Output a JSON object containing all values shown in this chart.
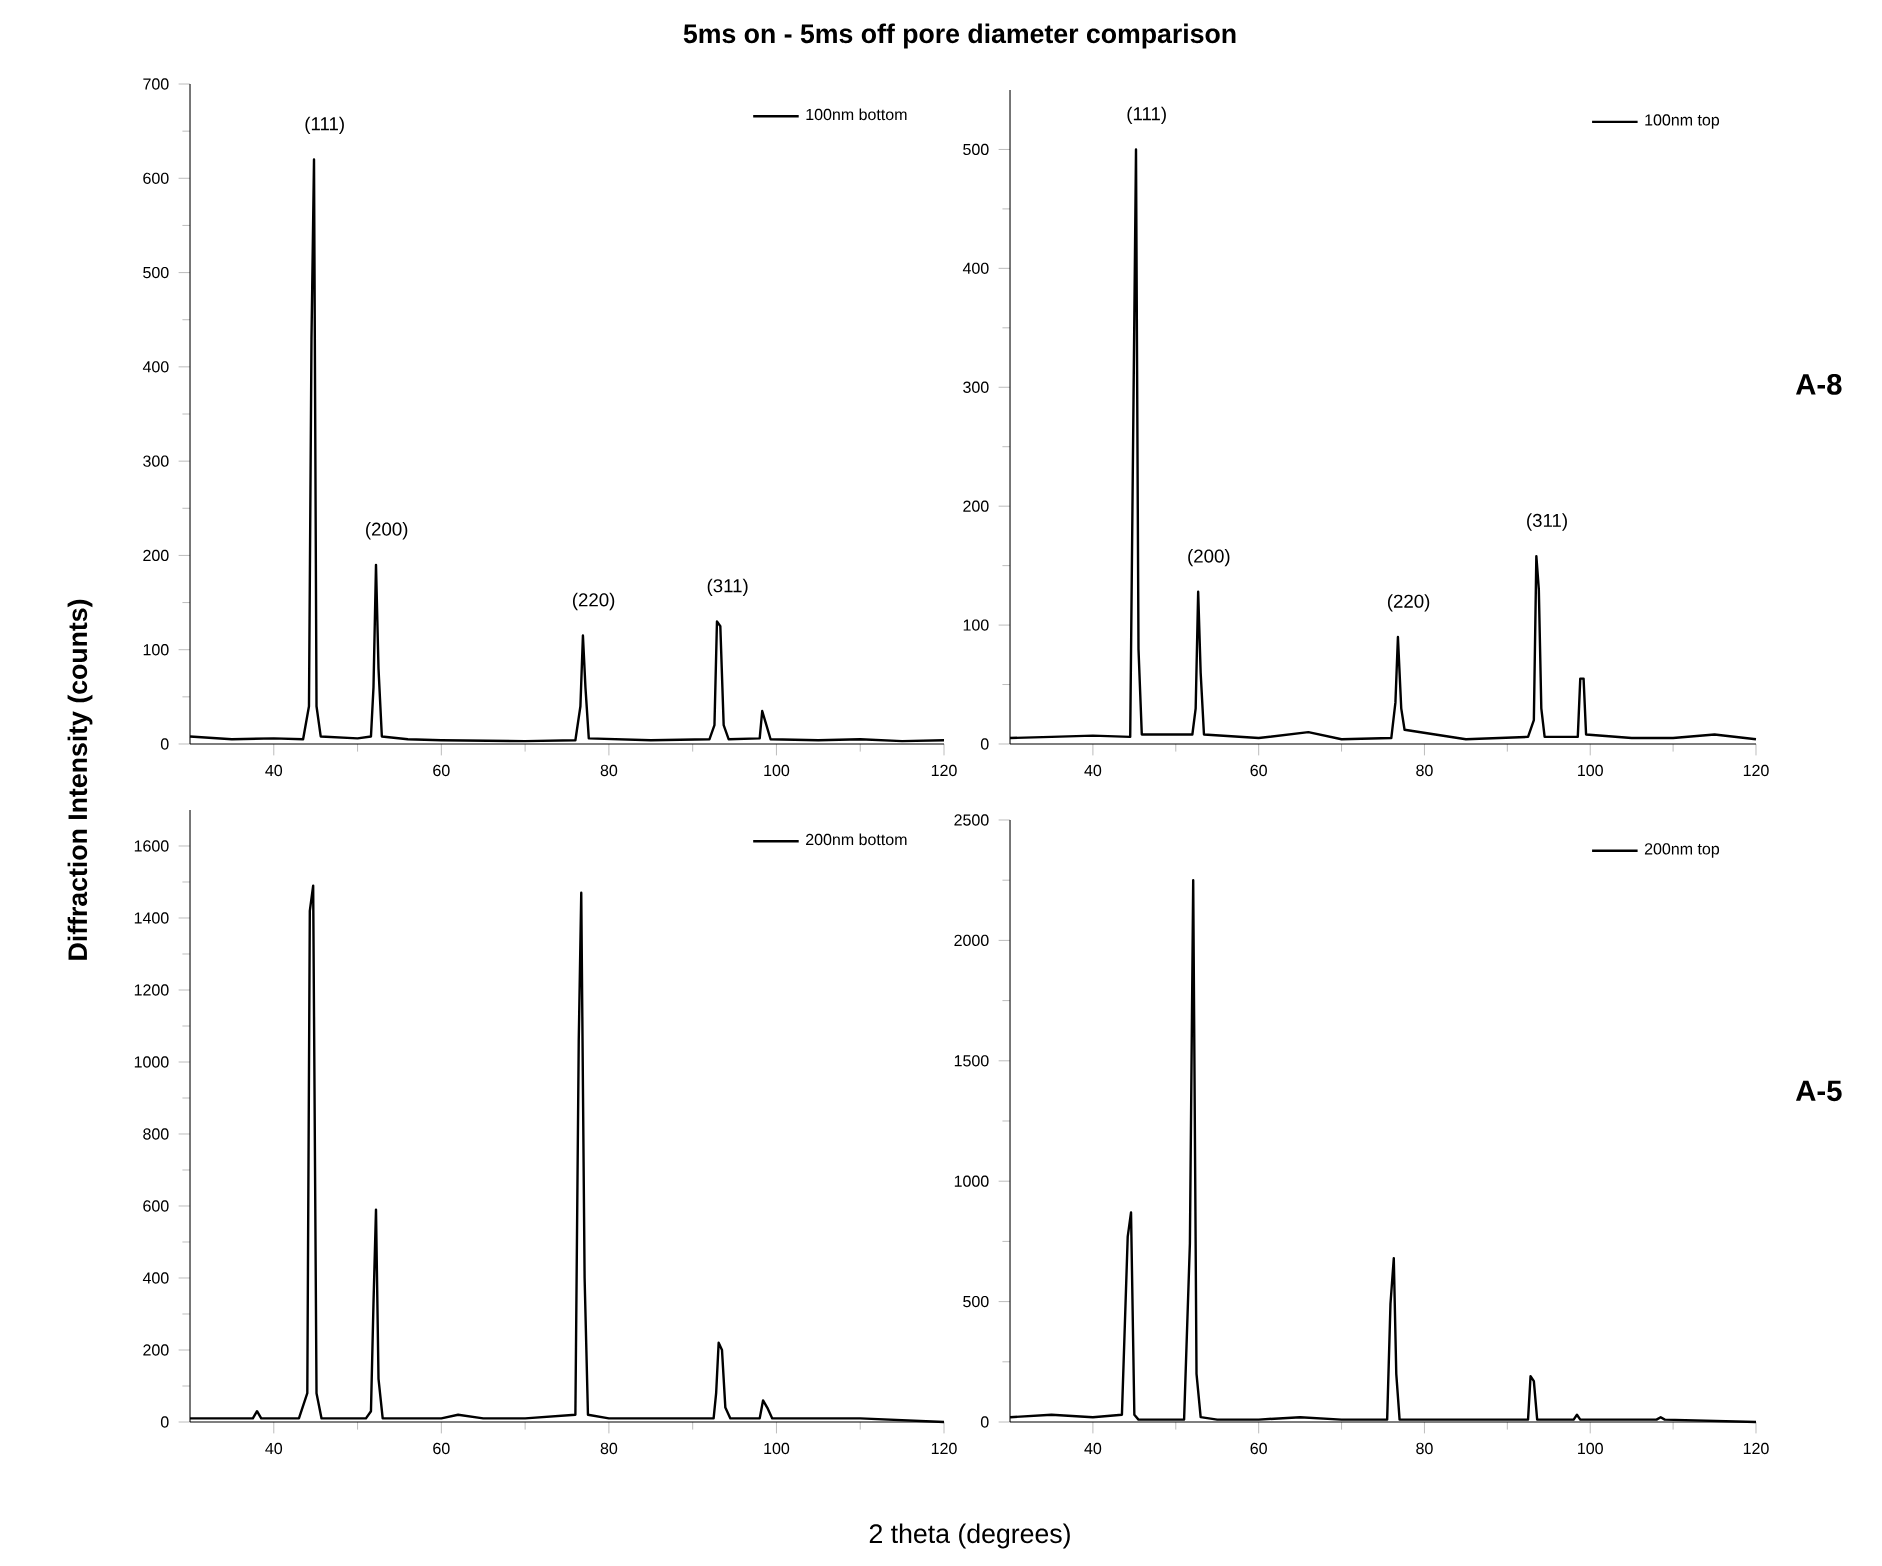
{
  "chart_data": [
    {
      "type": "line",
      "title": "5ms on - 5ms off pore diameter comparison",
      "ylabel": "Diffraction Intensity (counts)",
      "legend": "top right",
      "xlim": [
        30,
        120
      ],
      "xticks": [
        40,
        60,
        80,
        100,
        120
      ],
      "ylim": [
        0,
        700
      ],
      "yticks": [
        0,
        100,
        200,
        300,
        400,
        500,
        600,
        700
      ],
      "series": [
        {
          "name": "100nm bottom",
          "color": "#000000",
          "x": [
            30,
            35,
            40,
            43.5,
            44.2,
            44.5,
            44.8,
            45.1,
            45.6,
            50,
            51.6,
            51.9,
            52.2,
            52.5,
            52.9,
            56,
            60,
            70,
            76,
            76.6,
            76.9,
            77.2,
            77.6,
            85,
            92,
            92.6,
            92.9,
            93.3,
            93.7,
            94.3,
            98,
            98.3,
            98.8,
            99.3,
            105,
            110,
            115,
            120
          ],
          "values": [
            8,
            5,
            6,
            5,
            40,
            430,
            620,
            40,
            8,
            6,
            8,
            60,
            190,
            80,
            8,
            5,
            4,
            3,
            4,
            40,
            115,
            60,
            6,
            4,
            5,
            20,
            130,
            125,
            20,
            5,
            6,
            35,
            20,
            5,
            4,
            5,
            3,
            4
          ]
        }
      ],
      "annotations": [
        {
          "text": "(111)",
          "x": 44.8,
          "y": 620
        },
        {
          "text": "(200)",
          "x": 52.2,
          "y": 190
        },
        {
          "text": "(220)",
          "x": 76.9,
          "y": 115
        },
        {
          "text": "(311)",
          "x": 92.9,
          "y": 130
        }
      ]
    },
    {
      "type": "line",
      "legend": "top right",
      "xlim": [
        30,
        120
      ],
      "xticks": [
        40,
        60,
        80,
        100,
        120
      ],
      "ylim": [
        0,
        550
      ],
      "yticks": [
        0,
        100,
        200,
        300,
        400,
        500
      ],
      "series": [
        {
          "name": "100nm top",
          "color": "#000000",
          "x": [
            30,
            35,
            40,
            44.5,
            44.9,
            45.2,
            45.5,
            45.9,
            52,
            52.4,
            52.7,
            53,
            53.4,
            60,
            66,
            70,
            76,
            76.5,
            76.8,
            77.2,
            77.6,
            85,
            92.5,
            93.2,
            93.5,
            93.8,
            94.1,
            94.5,
            98.5,
            98.8,
            99.2,
            99.5,
            105,
            110,
            115,
            120
          ],
          "values": [
            5,
            6,
            7,
            6,
            290,
            500,
            80,
            8,
            8,
            30,
            128,
            60,
            8,
            5,
            10,
            4,
            5,
            35,
            90,
            30,
            12,
            4,
            6,
            20,
            158,
            130,
            30,
            6,
            6,
            55,
            55,
            8,
            5,
            5,
            8,
            4
          ]
        }
      ],
      "annotations": [
        {
          "text": "(111)",
          "x": 45.2,
          "y": 500
        },
        {
          "text": "(200)",
          "x": 52.7,
          "y": 128
        },
        {
          "text": "(220)",
          "x": 76.8,
          "y": 90
        },
        {
          "text": "(311)",
          "x": 93.5,
          "y": 158
        },
        "A-8"
      ]
    },
    {
      "type": "line",
      "xlabel": "2 theta (degrees)",
      "legend": "top right",
      "xlim": [
        30,
        120
      ],
      "xticks": [
        40,
        60,
        80,
        100,
        120
      ],
      "ylim": [
        0,
        1700
      ],
      "yticks": [
        0,
        200,
        400,
        600,
        800,
        1000,
        1200,
        1400,
        1600
      ],
      "series": [
        {
          "name": "200nm bottom",
          "color": "#000000",
          "x": [
            30,
            37.5,
            38,
            38.5,
            43,
            44,
            44.3,
            44.7,
            45.1,
            45.7,
            51,
            51.6,
            51.9,
            52.2,
            52.5,
            53,
            60,
            62,
            65,
            70,
            76,
            76.4,
            76.7,
            77.1,
            77.5,
            80,
            90,
            92.5,
            92.8,
            93.1,
            93.5,
            93.9,
            94.5,
            98,
            98.4,
            98.9,
            99.5,
            110,
            120
          ],
          "values": [
            10,
            10,
            30,
            10,
            10,
            80,
            1420,
            1490,
            80,
            10,
            10,
            30,
            330,
            590,
            120,
            10,
            10,
            20,
            10,
            10,
            20,
            1060,
            1470,
            400,
            20,
            10,
            10,
            10,
            80,
            220,
            200,
            40,
            10,
            10,
            60,
            40,
            10,
            10,
            0
          ]
        }
      ]
    },
    {
      "type": "line",
      "legend": "top right",
      "xlim": [
        30,
        120
      ],
      "xticks": [
        40,
        60,
        80,
        100,
        120
      ],
      "ylim": [
        0,
        2500
      ],
      "yticks": [
        0,
        500,
        1000,
        1500,
        2000,
        2500
      ],
      "series": [
        {
          "name": "200nm top",
          "color": "#000000",
          "x": [
            30,
            35,
            40,
            43.5,
            44.2,
            44.6,
            45,
            45.5,
            51,
            51.7,
            52.1,
            52.5,
            53,
            55,
            60,
            65,
            70,
            75.5,
            75.9,
            76.3,
            76.6,
            77,
            85,
            92.5,
            92.8,
            93.2,
            93.6,
            98,
            98.4,
            98.8,
            108,
            108.5,
            109,
            120
          ],
          "values": [
            20,
            30,
            20,
            30,
            770,
            870,
            30,
            10,
            10,
            740,
            2250,
            200,
            20,
            10,
            10,
            20,
            10,
            10,
            490,
            680,
            200,
            10,
            10,
            10,
            190,
            170,
            10,
            10,
            30,
            10,
            10,
            20,
            10,
            0
          ]
        }
      ],
      "annotations": [
        "A-5"
      ]
    }
  ]
}
